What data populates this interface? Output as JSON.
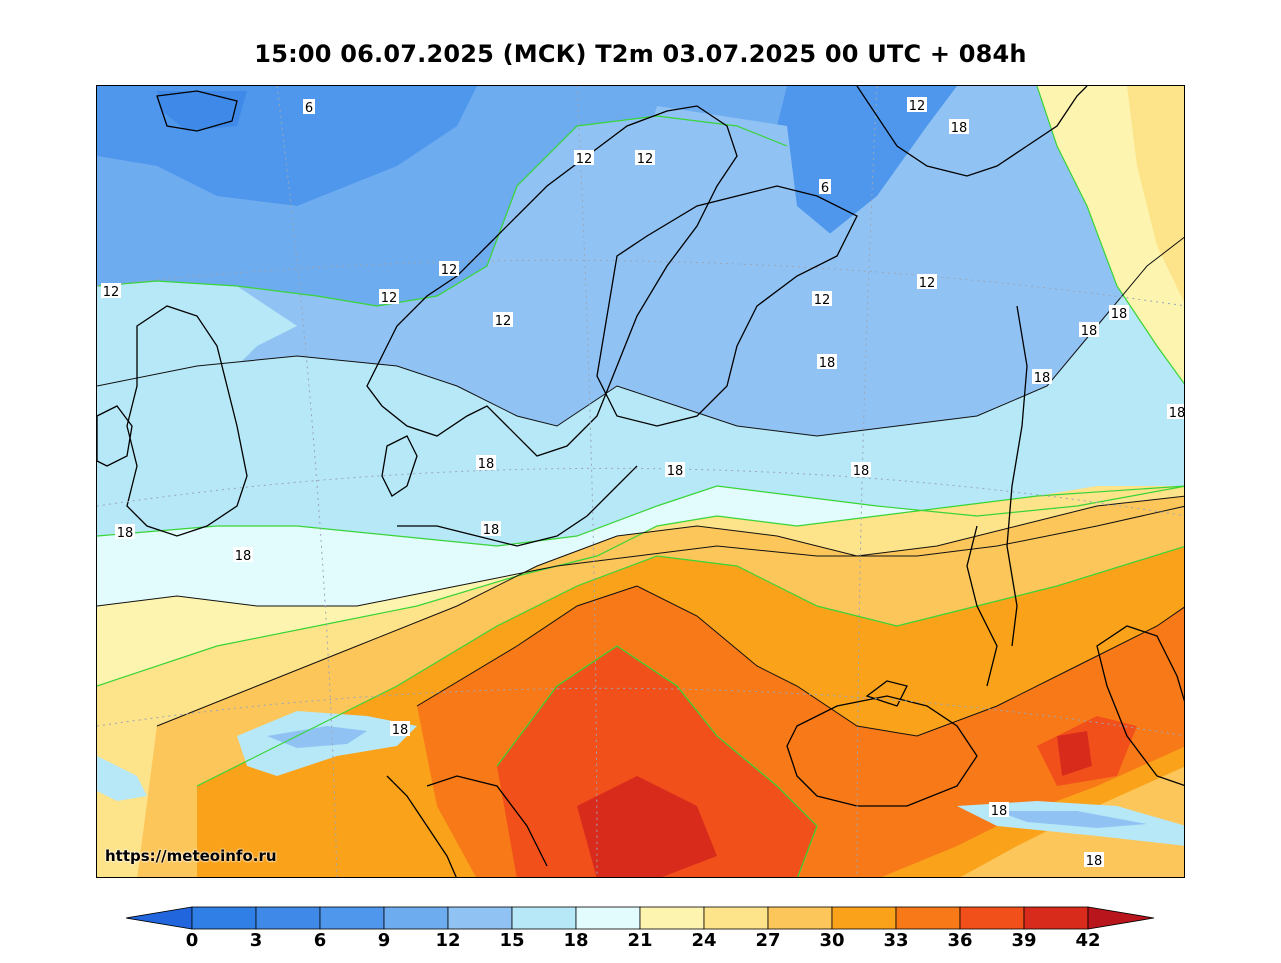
{
  "title": "15:00 06.07.2025 (МСК) T2m 03.07.2025 00 UTC + 084h",
  "source_url": "https://meteoinfo.ru",
  "colorbar": {
    "ticks": [
      "0",
      "3",
      "6",
      "9",
      "12",
      "15",
      "18",
      "21",
      "24",
      "27",
      "30",
      "33",
      "36",
      "39",
      "42"
    ],
    "colors": [
      "#2f7fe6",
      "#3f8ae9",
      "#4f97ec",
      "#6eacf0",
      "#90c3f4",
      "#b6e8f7",
      "#e2fbfc",
      "#fdf4b0",
      "#fde38a",
      "#fcc65a",
      "#f9a21a",
      "#f77918",
      "#f2501a",
      "#d92b1c"
    ],
    "under_color": "#2266dd",
    "over_color": "#b8151d"
  },
  "contour_labels": [
    {
      "text": "6"
    },
    {
      "text": "12"
    },
    {
      "text": "18"
    },
    {
      "text": "12"
    },
    {
      "text": "12"
    },
    {
      "text": "6"
    },
    {
      "text": "12"
    },
    {
      "text": "12"
    },
    {
      "text": "12"
    },
    {
      "text": "12"
    },
    {
      "text": "12"
    },
    {
      "text": "12"
    },
    {
      "text": "18"
    },
    {
      "text": "18"
    },
    {
      "text": "18"
    },
    {
      "text": "18"
    },
    {
      "text": "18"
    },
    {
      "text": "18"
    },
    {
      "text": "18"
    },
    {
      "text": "18"
    },
    {
      "text": "18"
    },
    {
      "text": "18"
    },
    {
      "text": "18"
    },
    {
      "text": "18"
    },
    {
      "text": "18"
    },
    {
      "text": "18"
    }
  ]
}
